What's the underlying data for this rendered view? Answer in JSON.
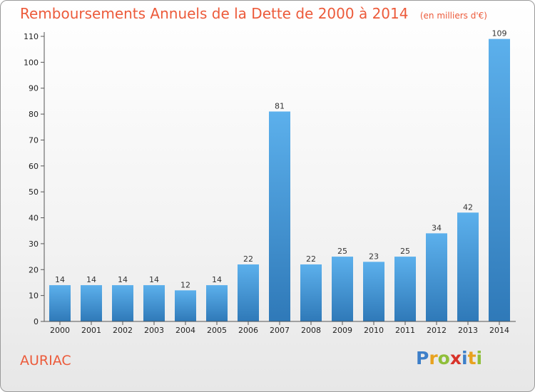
{
  "header": {
    "title": "Remboursements Annuels de la Dette de 2000 à 2014",
    "subtitle": "(en milliers d'€)"
  },
  "footer": {
    "commune": "AURIAC",
    "logo_text": "Proxiti",
    "logo_letters": [
      {
        "ch": "P",
        "color": "#3d7fc9"
      },
      {
        "ch": "r",
        "color": "#e8a21e"
      },
      {
        "ch": "o",
        "color": "#8fbf3a"
      },
      {
        "ch": "x",
        "color": "#d8332a"
      },
      {
        "ch": "i",
        "color": "#3d7fc9"
      },
      {
        "ch": "t",
        "color": "#e8a21e"
      },
      {
        "ch": "i",
        "color": "#8fbf3a"
      }
    ]
  },
  "chart_data": {
    "type": "bar",
    "title": "Remboursements Annuels de la Dette de 2000 à 2014",
    "subtitle": "(en milliers d'€)",
    "categories": [
      "2000",
      "2001",
      "2002",
      "2003",
      "2004",
      "2005",
      "2006",
      "2007",
      "2008",
      "2009",
      "2010",
      "2011",
      "2012",
      "2013",
      "2014"
    ],
    "values": [
      14,
      14,
      14,
      14,
      12,
      14,
      22,
      81,
      22,
      25,
      23,
      25,
      34,
      42,
      109
    ],
    "ylim": [
      0,
      110
    ],
    "yticks": [
      0,
      10,
      20,
      30,
      40,
      50,
      60,
      70,
      80,
      90,
      100,
      110
    ],
    "grid": false,
    "data_labels": true,
    "bar_color_light": "#5cb0ec",
    "bar_color_dark": "#2f79b8",
    "axis_color": "#555555"
  }
}
